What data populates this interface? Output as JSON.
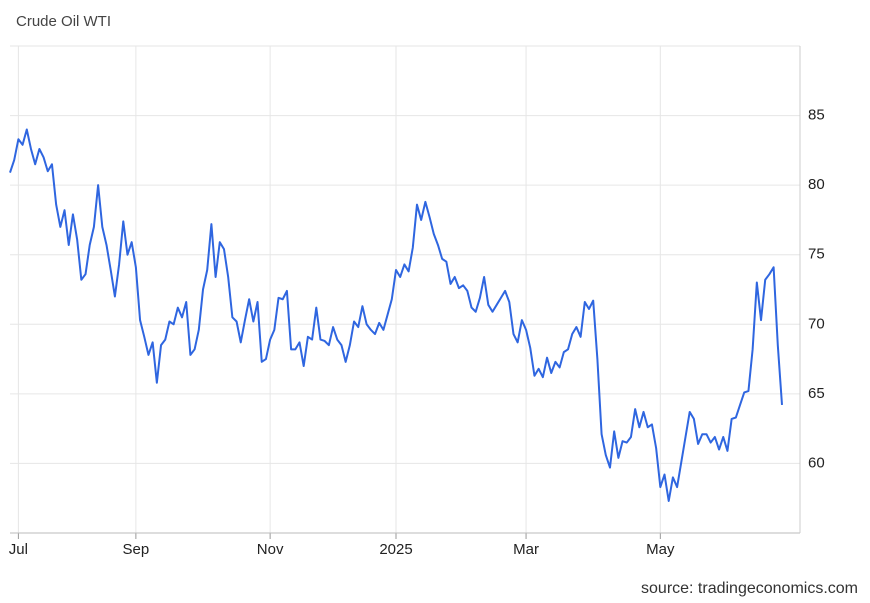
{
  "chart_data": {
    "type": "line",
    "title": "Crude Oil WTI",
    "source": "source: tradingeconomics.com",
    "color": "#2f66e0",
    "grid": true,
    "ylim": [
      55,
      90
    ],
    "yticks": [
      60,
      65,
      70,
      75,
      80,
      85
    ],
    "categories": [
      null,
      null,
      "Jul",
      null,
      null,
      null,
      null,
      null,
      null,
      null,
      null,
      null,
      null,
      null,
      null,
      null,
      null,
      null,
      null,
      null,
      null,
      null,
      null,
      null,
      null,
      null,
      null,
      null,
      null,
      null,
      "Sep",
      null,
      null,
      null,
      null,
      null,
      null,
      null,
      null,
      null,
      null,
      null,
      null,
      null,
      null,
      null,
      null,
      null,
      null,
      null,
      null,
      null,
      null,
      null,
      null,
      null,
      null,
      null,
      null,
      null,
      null,
      null,
      "Nov",
      null,
      null,
      null,
      null,
      null,
      null,
      null,
      null,
      null,
      null,
      null,
      null,
      null,
      null,
      null,
      null,
      null,
      null,
      null,
      null,
      null,
      null,
      null,
      null,
      null,
      null,
      null,
      null,
      null,
      "2025",
      null,
      null,
      null,
      null,
      null,
      null,
      null,
      null,
      null,
      null,
      null,
      null,
      null,
      null,
      null,
      null,
      null,
      null,
      null,
      null,
      null,
      null,
      null,
      null,
      null,
      null,
      null,
      null,
      null,
      null,
      "Mar",
      null,
      null,
      null,
      null,
      null,
      null,
      null,
      null,
      null,
      null,
      null,
      null,
      null,
      null,
      null,
      null,
      null,
      null,
      null,
      null,
      null,
      null,
      null,
      null,
      null,
      null,
      null,
      null,
      null,
      null,
      null,
      "May",
      null,
      null,
      null,
      null,
      null,
      null,
      null,
      null,
      null,
      null,
      null,
      null,
      null,
      null,
      null,
      null,
      null,
      null,
      null,
      null,
      null,
      null,
      null,
      null,
      null,
      null,
      null,
      null,
      null
    ],
    "values": [
      80.9,
      81.8,
      83.3,
      82.9,
      84.0,
      82.6,
      81.5,
      82.6,
      82.0,
      81.0,
      81.5,
      78.6,
      77.0,
      78.2,
      75.7,
      77.9,
      76.1,
      73.2,
      73.6,
      75.7,
      77.0,
      80.0,
      77.0,
      75.7,
      73.9,
      72.0,
      74.3,
      77.4,
      75.0,
      75.9,
      74.1,
      70.3,
      69.1,
      67.8,
      68.7,
      65.8,
      68.5,
      68.9,
      70.2,
      70.0,
      71.2,
      70.5,
      71.6,
      67.8,
      68.2,
      69.6,
      72.5,
      73.9,
      77.2,
      73.4,
      75.9,
      75.4,
      73.4,
      70.5,
      70.2,
      68.7,
      70.3,
      71.8,
      70.2,
      71.6,
      67.3,
      67.5,
      68.9,
      69.6,
      71.9,
      71.8,
      72.4,
      68.2,
      68.2,
      68.7,
      67.0,
      69.1,
      68.9,
      71.2,
      68.9,
      68.8,
      68.5,
      69.8,
      68.9,
      68.5,
      67.3,
      68.5,
      70.2,
      69.8,
      71.3,
      70.0,
      69.6,
      69.3,
      70.1,
      69.6,
      70.7,
      71.8,
      73.9,
      73.4,
      74.3,
      73.8,
      75.5,
      78.6,
      77.5,
      78.8,
      77.7,
      76.5,
      75.7,
      74.7,
      74.5,
      72.9,
      73.4,
      72.6,
      72.8,
      72.4,
      71.2,
      70.9,
      71.9,
      73.4,
      71.4,
      70.9,
      71.4,
      71.9,
      72.4,
      71.6,
      69.3,
      68.7,
      70.3,
      69.6,
      68.3,
      66.3,
      66.8,
      66.2,
      67.6,
      66.5,
      67.3,
      66.9,
      68.0,
      68.2,
      69.3,
      69.8,
      69.1,
      71.6,
      71.1,
      71.7,
      67.5,
      62.1,
      60.6,
      59.7,
      62.3,
      60.4,
      61.6,
      61.5,
      61.9,
      63.9,
      62.6,
      63.7,
      62.6,
      62.8,
      61.1,
      58.3,
      59.2,
      57.3,
      59.0,
      58.3,
      60.1,
      61.9,
      63.7,
      63.2,
      61.4,
      62.1,
      62.1,
      61.5,
      61.9,
      61.0,
      61.9,
      60.9,
      63.2,
      63.3,
      64.2,
      65.1,
      65.2,
      68.2,
      73.0,
      70.3,
      73.2,
      73.6,
      74.1,
      68.5,
      64.2
    ]
  }
}
